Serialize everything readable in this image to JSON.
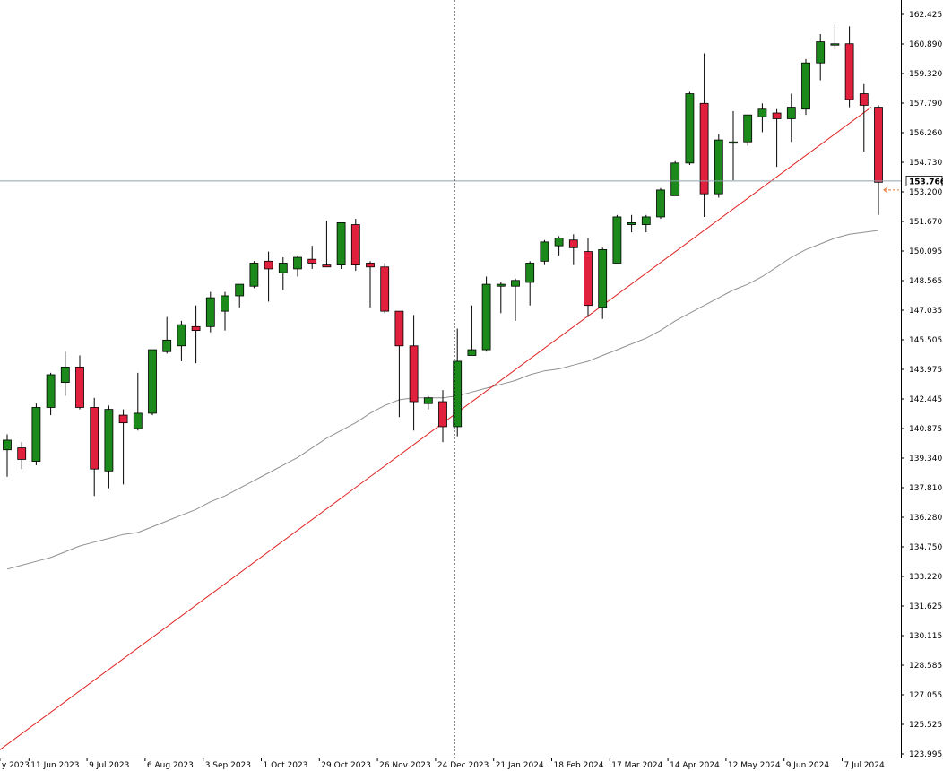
{
  "chart_data": {
    "type": "candlestick",
    "title": "",
    "xlabel": "",
    "ylabel": "",
    "interval": "weekly",
    "ylim": [
      123.995,
      162.425
    ],
    "y_ticks": [
      "162.425",
      "160.890",
      "159.320",
      "157.790",
      "156.260",
      "154.730",
      "153.200",
      "151.670",
      "150.095",
      "148.565",
      "147.035",
      "145.505",
      "143.975",
      "142.445",
      "140.875",
      "139.340",
      "137.810",
      "136.280",
      "134.750",
      "133.220",
      "131.625",
      "130.115",
      "128.585",
      "127.055",
      "125.525",
      "123.995"
    ],
    "x_labels": [
      {
        "index": -0.5,
        "label": "y 2023"
      },
      {
        "index": 1.5,
        "label": "11 Jun 2023"
      },
      {
        "index": 5.5,
        "label": "9 Jul 2023"
      },
      {
        "index": 9.5,
        "label": "6 Aug 2023"
      },
      {
        "index": 13.5,
        "label": "3 Sep 2023"
      },
      {
        "index": 17.5,
        "label": "1 Oct 2023"
      },
      {
        "index": 21.5,
        "label": "29 Oct 2023"
      },
      {
        "index": 25.5,
        "label": "26 Nov 2023"
      },
      {
        "index": 29.5,
        "label": "24 Dec 2023"
      },
      {
        "index": 33.5,
        "label": "21 Jan 2024"
      },
      {
        "index": 37.5,
        "label": "18 Feb 2024"
      },
      {
        "index": 41.5,
        "label": "17 Mar 2024"
      },
      {
        "index": 45.5,
        "label": "14 Apr 2024"
      },
      {
        "index": 49.5,
        "label": "12 May 2024"
      },
      {
        "index": 53.5,
        "label": "9 Jun 2024"
      },
      {
        "index": 57.5,
        "label": "7 Jul 2024"
      }
    ],
    "candles": [
      {
        "o": 139.8,
        "h": 140.6,
        "l": 138.4,
        "c": 140.3
      },
      {
        "o": 139.9,
        "h": 140.2,
        "l": 138.8,
        "c": 139.3
      },
      {
        "o": 139.2,
        "h": 142.2,
        "l": 139.0,
        "c": 142.0
      },
      {
        "o": 142.0,
        "h": 143.8,
        "l": 141.6,
        "c": 143.7
      },
      {
        "o": 143.3,
        "h": 144.9,
        "l": 142.6,
        "c": 144.1
      },
      {
        "o": 144.1,
        "h": 144.7,
        "l": 141.9,
        "c": 142.0
      },
      {
        "o": 142.0,
        "h": 142.5,
        "l": 137.4,
        "c": 138.8
      },
      {
        "o": 138.7,
        "h": 142.1,
        "l": 137.8,
        "c": 141.9
      },
      {
        "o": 141.6,
        "h": 141.9,
        "l": 138.0,
        "c": 141.2
      },
      {
        "o": 140.9,
        "h": 143.8,
        "l": 140.8,
        "c": 141.7
      },
      {
        "o": 141.7,
        "h": 145.0,
        "l": 141.6,
        "c": 145.0
      },
      {
        "o": 144.9,
        "h": 146.7,
        "l": 144.8,
        "c": 145.5
      },
      {
        "o": 145.2,
        "h": 146.5,
        "l": 144.4,
        "c": 146.3
      },
      {
        "o": 146.2,
        "h": 147.3,
        "l": 144.3,
        "c": 146.0
      },
      {
        "o": 146.2,
        "h": 148.0,
        "l": 145.9,
        "c": 147.7
      },
      {
        "o": 147.0,
        "h": 148.0,
        "l": 146.0,
        "c": 147.8
      },
      {
        "o": 147.8,
        "h": 148.4,
        "l": 147.2,
        "c": 148.4
      },
      {
        "o": 148.3,
        "h": 149.6,
        "l": 148.2,
        "c": 149.5
      },
      {
        "o": 149.6,
        "h": 150.1,
        "l": 147.5,
        "c": 149.2
      },
      {
        "o": 149.0,
        "h": 149.8,
        "l": 148.1,
        "c": 149.5
      },
      {
        "o": 149.2,
        "h": 149.9,
        "l": 148.8,
        "c": 149.8
      },
      {
        "o": 149.7,
        "h": 150.4,
        "l": 149.2,
        "c": 149.5
      },
      {
        "o": 149.4,
        "h": 151.7,
        "l": 149.3,
        "c": 149.3
      },
      {
        "o": 149.4,
        "h": 151.6,
        "l": 149.2,
        "c": 151.6
      },
      {
        "o": 151.5,
        "h": 151.8,
        "l": 149.1,
        "c": 149.4
      },
      {
        "o": 149.5,
        "h": 149.6,
        "l": 147.2,
        "c": 149.3
      },
      {
        "o": 149.3,
        "h": 149.5,
        "l": 146.9,
        "c": 147.0
      },
      {
        "o": 147.0,
        "h": 147.0,
        "l": 141.5,
        "c": 145.2
      },
      {
        "o": 145.2,
        "h": 146.8,
        "l": 140.8,
        "c": 142.3
      },
      {
        "o": 142.2,
        "h": 142.6,
        "l": 141.9,
        "c": 142.5
      },
      {
        "o": 142.3,
        "h": 142.9,
        "l": 140.2,
        "c": 141.0
      },
      {
        "o": 141.0,
        "h": 146.1,
        "l": 140.5,
        "c": 144.4
      },
      {
        "o": 144.7,
        "h": 147.3,
        "l": 144.7,
        "c": 145.0
      },
      {
        "o": 145.0,
        "h": 148.8,
        "l": 144.9,
        "c": 148.4
      },
      {
        "o": 148.3,
        "h": 148.5,
        "l": 146.9,
        "c": 148.4
      },
      {
        "o": 148.3,
        "h": 148.7,
        "l": 146.5,
        "c": 148.6
      },
      {
        "o": 148.5,
        "h": 149.6,
        "l": 147.3,
        "c": 149.5
      },
      {
        "o": 149.6,
        "h": 150.7,
        "l": 149.4,
        "c": 150.6
      },
      {
        "o": 150.4,
        "h": 150.9,
        "l": 149.9,
        "c": 150.8
      },
      {
        "o": 150.7,
        "h": 151.0,
        "l": 149.4,
        "c": 150.3
      },
      {
        "o": 150.1,
        "h": 150.8,
        "l": 146.7,
        "c": 147.3
      },
      {
        "o": 147.2,
        "h": 150.3,
        "l": 146.6,
        "c": 150.2
      },
      {
        "o": 149.5,
        "h": 152.0,
        "l": 149.5,
        "c": 151.9
      },
      {
        "o": 151.5,
        "h": 152.0,
        "l": 151.1,
        "c": 151.6
      },
      {
        "o": 151.5,
        "h": 152.0,
        "l": 151.1,
        "c": 151.9
      },
      {
        "o": 151.9,
        "h": 153.4,
        "l": 151.8,
        "c": 153.3
      },
      {
        "o": 153.0,
        "h": 154.8,
        "l": 153.0,
        "c": 154.7
      },
      {
        "o": 154.7,
        "h": 158.4,
        "l": 154.6,
        "c": 158.3
      },
      {
        "o": 157.8,
        "h": 160.4,
        "l": 151.9,
        "c": 153.1
      },
      {
        "o": 153.1,
        "h": 156.2,
        "l": 152.9,
        "c": 155.9
      },
      {
        "o": 155.8,
        "h": 157.4,
        "l": 153.8,
        "c": 155.8
      },
      {
        "o": 155.8,
        "h": 157.2,
        "l": 155.6,
        "c": 157.2
      },
      {
        "o": 157.1,
        "h": 157.8,
        "l": 156.3,
        "c": 157.5
      },
      {
        "o": 157.3,
        "h": 157.5,
        "l": 154.5,
        "c": 157.0
      },
      {
        "o": 157.0,
        "h": 158.3,
        "l": 155.8,
        "c": 157.6
      },
      {
        "o": 157.5,
        "h": 160.1,
        "l": 157.2,
        "c": 159.9
      },
      {
        "o": 159.9,
        "h": 161.4,
        "l": 159.0,
        "c": 161.0
      },
      {
        "o": 160.9,
        "h": 161.9,
        "l": 160.6,
        "c": 160.9
      },
      {
        "o": 160.9,
        "h": 161.8,
        "l": 157.6,
        "c": 158.0
      },
      {
        "o": 158.3,
        "h": 158.8,
        "l": 155.3,
        "c": 157.7
      },
      {
        "o": 157.6,
        "h": 157.7,
        "l": 152.0,
        "c": 153.7
      }
    ],
    "moving_average": [
      133.6,
      133.8,
      134.0,
      134.2,
      134.5,
      134.8,
      135.0,
      135.2,
      135.4,
      135.5,
      135.8,
      136.1,
      136.4,
      136.7,
      137.1,
      137.4,
      137.8,
      138.2,
      138.6,
      139.0,
      139.4,
      139.9,
      140.4,
      140.8,
      141.2,
      141.7,
      142.1,
      142.4,
      142.5,
      142.5,
      142.5,
      142.6,
      142.8,
      143.0,
      143.2,
      143.4,
      143.7,
      143.9,
      144.0,
      144.2,
      144.4,
      144.7,
      145.0,
      145.3,
      145.6,
      146.0,
      146.5,
      146.9,
      147.3,
      147.7,
      148.1,
      148.4,
      148.8,
      149.3,
      149.8,
      150.2,
      150.5,
      150.8,
      151.0,
      151.1,
      151.2
    ],
    "trendline": {
      "from": {
        "index": -1.6,
        "price": 123.6
      },
      "to": {
        "index": 59.5,
        "price": 157.6
      }
    },
    "current_price": "153.766",
    "current_price_value": 153.766,
    "cursor_index": 30.8,
    "colors": {
      "bull": "#1b8a1b",
      "bear": "#e0203c",
      "wick": "#000000",
      "moving_average": "#909090",
      "trendline": "#e02020",
      "price_line": "#8fa3b0",
      "price_arrow": "#e07830",
      "axis": "#000000"
    }
  }
}
